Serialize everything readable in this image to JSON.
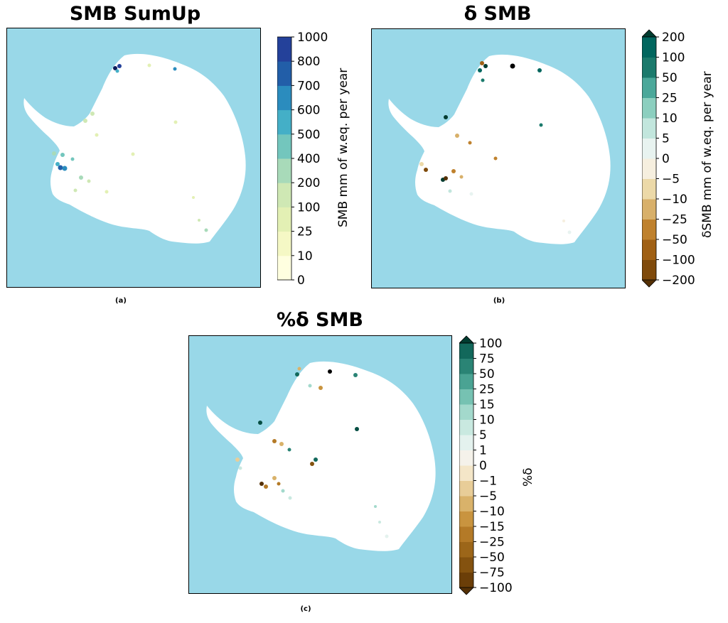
{
  "panels": [
    {
      "id": "a",
      "title": "SMB SumUp",
      "caption": "(a)",
      "colorbar": {
        "label": "SMB mm of w.eq. per year",
        "ticks": [
          "0",
          "10",
          "25",
          "100",
          "200",
          "400",
          "500",
          "600",
          "700",
          "800",
          "1000"
        ],
        "colors": [
          "#ffffe0",
          "#f5f8c5",
          "#e3f0b4",
          "#cfe8b4",
          "#a8dab9",
          "#73c6bd",
          "#44afc7",
          "#2b8cbe",
          "#225ea8",
          "#24419a",
          "#1f2d86",
          "#0e1e5c"
        ]
      },
      "points": [
        {
          "lon": -30.0,
          "lat": -72.0,
          "v": 6
        }
      ]
    },
    {
      "id": "b",
      "title": "δ SMB",
      "caption": "(b)",
      "colorbar": {
        "label": "δSMB mm of w.eq. per year",
        "ticks": [
          "-200",
          "-100",
          "-50",
          "-25",
          "-10",
          "-5",
          "0",
          "5",
          "10",
          "25",
          "50",
          "100",
          "200"
        ],
        "colors": [
          "#543005",
          "#7f4a0b",
          "#a06014",
          "#bf812d",
          "#d8b06a",
          "#ecd9a8",
          "#f6efdf",
          "#e8f3f0",
          "#c2e6dd",
          "#8ccfbf",
          "#4ba89a",
          "#1b7a6c",
          "#01665e",
          "#003c30"
        ]
      }
    },
    {
      "id": "c",
      "title": "%δ SMB",
      "caption": "(c)",
      "colorbar": {
        "label": "%δ",
        "ticks": [
          "-100",
          "-75",
          "-50",
          "-25",
          "-15",
          "-10",
          "-5",
          "-1",
          "0",
          "1",
          "5",
          "10",
          "15",
          "25",
          "50",
          "75",
          "100"
        ],
        "colors": [
          "#543005",
          "#6b3e08",
          "#84520f",
          "#9c6619",
          "#b47a27",
          "#c9943f",
          "#d9b26a",
          "#e8cd98",
          "#f4e6c8",
          "#f5f2ea",
          "#e4f2ee",
          "#c9e9e0",
          "#a3d9cc",
          "#76c2b2",
          "#4aa393",
          "#2a8475",
          "#12685b",
          "#054d42",
          "#003c30"
        ]
      }
    }
  ]
}
